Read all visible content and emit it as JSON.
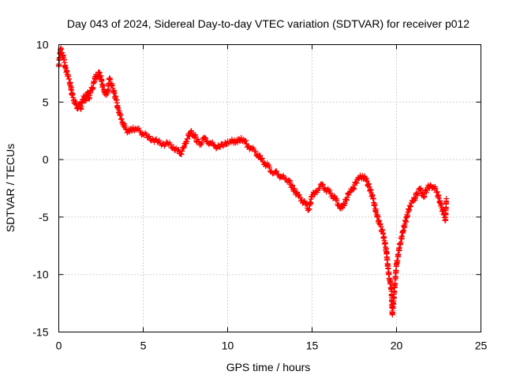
{
  "chart_data": {
    "type": "scatter",
    "title": "Day 043 of 2024, Sidereal Day-to-day VTEC variation (SDTVAR) for receiver p012",
    "xlabel": "GPS time / hours",
    "ylabel": "SDTVAR / TECUs",
    "xlim": [
      0,
      25
    ],
    "ylim": [
      -15,
      10
    ],
    "xticks": [
      0,
      5,
      10,
      15,
      20,
      25
    ],
    "yticks": [
      -15,
      -10,
      -5,
      0,
      5,
      10
    ],
    "grid": true,
    "legend": "none",
    "marker": "plus",
    "colors": {
      "series": "#ff0000",
      "axis": "#000000",
      "grid": "#a0a0a0"
    },
    "series": [
      {
        "name": "p012 SDTVAR",
        "points": [
          [
            0.0,
            8.2
          ],
          [
            0.1,
            9.6
          ],
          [
            0.2,
            9.3
          ],
          [
            0.3,
            8.7
          ],
          [
            0.4,
            8.0
          ],
          [
            0.5,
            7.4
          ],
          [
            0.6,
            7.0
          ],
          [
            0.7,
            6.4
          ],
          [
            0.8,
            5.6
          ],
          [
            0.9,
            5.2
          ],
          [
            1.0,
            4.8
          ],
          [
            1.1,
            4.5
          ],
          [
            1.2,
            4.8
          ],
          [
            1.3,
            4.4
          ],
          [
            1.4,
            5.2
          ],
          [
            1.5,
            5.4
          ],
          [
            1.6,
            5.2
          ],
          [
            1.7,
            5.8
          ],
          [
            1.8,
            5.4
          ],
          [
            1.9,
            6.0
          ],
          [
            2.0,
            6.2
          ],
          [
            2.1,
            6.8
          ],
          [
            2.2,
            7.4
          ],
          [
            2.3,
            7.2
          ],
          [
            2.4,
            7.6
          ],
          [
            2.5,
            7.0
          ],
          [
            2.6,
            6.4
          ],
          [
            2.7,
            6.0
          ],
          [
            2.8,
            5.6
          ],
          [
            2.9,
            6.0
          ],
          [
            3.0,
            7.0
          ],
          [
            3.2,
            6.2
          ],
          [
            3.4,
            5.2
          ],
          [
            3.5,
            4.5
          ],
          [
            3.6,
            4.0
          ],
          [
            3.7,
            3.5
          ],
          [
            3.8,
            3.2
          ],
          [
            3.9,
            2.8
          ],
          [
            4.0,
            2.6
          ],
          [
            4.2,
            2.4
          ],
          [
            4.4,
            2.8
          ],
          [
            4.6,
            2.6
          ],
          [
            4.8,
            2.5
          ],
          [
            5.0,
            2.2
          ],
          [
            5.3,
            2.0
          ],
          [
            5.6,
            1.7
          ],
          [
            5.9,
            1.5
          ],
          [
            6.2,
            1.4
          ],
          [
            6.5,
            1.3
          ],
          [
            6.8,
            1.1
          ],
          [
            7.0,
            0.8
          ],
          [
            7.2,
            0.5
          ],
          [
            7.4,
            1.0
          ],
          [
            7.5,
            1.4
          ],
          [
            7.6,
            1.8
          ],
          [
            7.8,
            2.4
          ],
          [
            8.0,
            2.2
          ],
          [
            8.2,
            1.6
          ],
          [
            8.4,
            1.4
          ],
          [
            8.6,
            1.8
          ],
          [
            8.8,
            1.6
          ],
          [
            9.0,
            1.4
          ],
          [
            9.2,
            1.2
          ],
          [
            9.5,
            1.1
          ],
          [
            9.8,
            1.3
          ],
          [
            10.0,
            1.6
          ],
          [
            10.2,
            1.5
          ],
          [
            10.4,
            1.7
          ],
          [
            10.6,
            1.5
          ],
          [
            10.8,
            1.9
          ],
          [
            11.0,
            1.6
          ],
          [
            11.2,
            1.2
          ],
          [
            11.4,
            1.0
          ],
          [
            11.6,
            0.7
          ],
          [
            11.8,
            0.4
          ],
          [
            12.0,
            0.0
          ],
          [
            12.2,
            -0.3
          ],
          [
            12.4,
            -0.6
          ],
          [
            12.6,
            -1.0
          ],
          [
            12.8,
            -1.1
          ],
          [
            13.0,
            -1.3
          ],
          [
            13.2,
            -1.5
          ],
          [
            13.4,
            -1.7
          ],
          [
            13.6,
            -1.8
          ],
          [
            13.8,
            -2.3
          ],
          [
            14.0,
            -2.8
          ],
          [
            14.2,
            -3.2
          ],
          [
            14.4,
            -3.5
          ],
          [
            14.6,
            -3.9
          ],
          [
            14.8,
            -4.3
          ],
          [
            15.0,
            -3.2
          ],
          [
            15.2,
            -2.8
          ],
          [
            15.4,
            -2.5
          ],
          [
            15.6,
            -2.2
          ],
          [
            15.8,
            -2.6
          ],
          [
            16.0,
            -2.8
          ],
          [
            16.2,
            -3.1
          ],
          [
            16.4,
            -3.5
          ],
          [
            16.6,
            -4.0
          ],
          [
            16.8,
            -4.2
          ],
          [
            17.0,
            -3.5
          ],
          [
            17.2,
            -2.9
          ],
          [
            17.4,
            -2.6
          ],
          [
            17.6,
            -2.0
          ],
          [
            17.8,
            -1.6
          ],
          [
            18.0,
            -1.4
          ],
          [
            18.2,
            -1.8
          ],
          [
            18.4,
            -2.4
          ],
          [
            18.6,
            -3.4
          ],
          [
            18.8,
            -4.6
          ],
          [
            19.0,
            -5.6
          ],
          [
            19.2,
            -6.4
          ],
          [
            19.4,
            -8.0
          ],
          [
            19.5,
            -9.5
          ],
          [
            19.6,
            -10.5
          ],
          [
            19.7,
            -11.3
          ],
          [
            19.75,
            -13.4
          ],
          [
            19.8,
            -12.8
          ],
          [
            19.9,
            -10.8
          ],
          [
            20.0,
            -9.2
          ],
          [
            20.2,
            -7.4
          ],
          [
            20.4,
            -6.2
          ],
          [
            20.6,
            -5.0
          ],
          [
            20.8,
            -4.0
          ],
          [
            21.0,
            -3.6
          ],
          [
            21.2,
            -3.0
          ],
          [
            21.4,
            -2.6
          ],
          [
            21.6,
            -3.2
          ],
          [
            21.8,
            -2.6
          ],
          [
            22.0,
            -2.2
          ],
          [
            22.2,
            -2.4
          ],
          [
            22.4,
            -2.8
          ],
          [
            22.6,
            -3.8
          ],
          [
            22.8,
            -4.8
          ],
          [
            22.9,
            -5.2
          ],
          [
            22.95,
            -3.4
          ]
        ]
      }
    ]
  }
}
